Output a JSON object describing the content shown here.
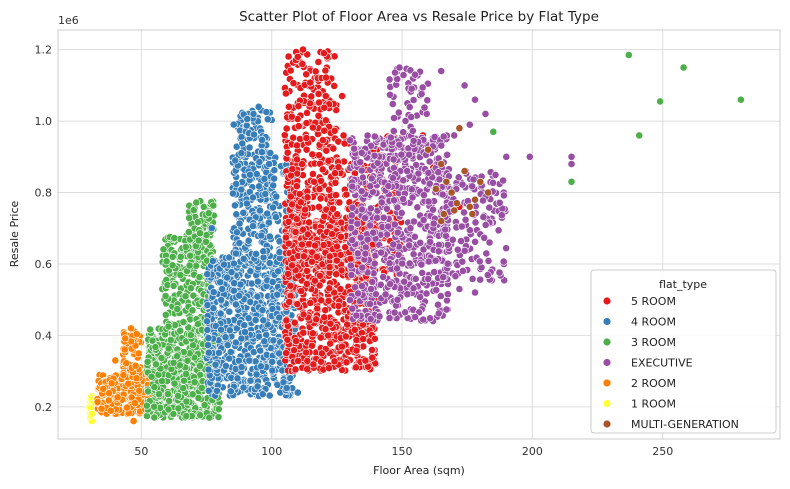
{
  "chart_data": {
    "type": "scatter",
    "title": "Scatter Plot of Floor Area vs Resale Price by Flat Type",
    "xlabel": "Floor Area (sqm)",
    "ylabel": "Resale Price",
    "y_offset_label": "1e6",
    "xlim": [
      18,
      295
    ],
    "ylim": [
      110000,
      1255000
    ],
    "x_ticks": [
      50,
      100,
      150,
      200,
      250
    ],
    "x_tick_labels": [
      "50",
      "100",
      "150",
      "200",
      "250"
    ],
    "y_ticks": [
      200000,
      400000,
      600000,
      800000,
      1000000,
      1200000
    ],
    "y_tick_labels": [
      "0.2",
      "0.4",
      "0.6",
      "0.8",
      "1.0",
      "1.2"
    ],
    "grid": true,
    "legend": {
      "title": "flat_type",
      "placement": "lower-right"
    },
    "series": [
      {
        "name": "5 ROOM",
        "color": "#e41a1c",
        "clusters": [
          {
            "x": [
              105,
              140
            ],
            "y": [
              300000,
              720000
            ],
            "count": 700
          },
          {
            "x": [
              105,
              125
            ],
            "y": [
              600000,
              1200000
            ],
            "count": 350
          },
          {
            "x": [
              118,
              150
            ],
            "y": [
              560000,
              960000
            ],
            "count": 250
          }
        ],
        "points": [
          [
            112,
            1200000
          ],
          [
            120,
            1190000
          ],
          [
            110,
            1180000
          ],
          [
            127,
            1070000
          ],
          [
            158,
            960000
          ],
          [
            162,
            870000
          ],
          [
            172,
            760000
          ],
          [
            135,
            430000
          ]
        ]
      },
      {
        "name": "4 ROOM",
        "color": "#377eb8",
        "clusters": [
          {
            "x": [
              75,
              108
            ],
            "y": [
              230000,
              620000
            ],
            "count": 700
          },
          {
            "x": [
              85,
              100
            ],
            "y": [
              600000,
              1030000
            ],
            "count": 260
          },
          {
            "x": [
              100,
              110
            ],
            "y": [
              300000,
              900000
            ],
            "count": 150
          }
        ],
        "points": [
          [
            95,
            1040000
          ],
          [
            93,
            1020000
          ],
          [
            99,
            880000
          ],
          [
            86,
            890000
          ],
          [
            77,
            700000
          ],
          [
            79,
            245000
          ],
          [
            110,
            240000
          ]
        ]
      },
      {
        "name": "3 ROOM",
        "color": "#4daf4a",
        "clusters": [
          {
            "x": [
              52,
              80
            ],
            "y": [
              170000,
              420000
            ],
            "count": 600
          },
          {
            "x": [
              58,
              76
            ],
            "y": [
              400000,
              680000
            ],
            "count": 250
          },
          {
            "x": [
              68,
              78
            ],
            "y": [
              600000,
              780000
            ],
            "count": 80
          }
        ],
        "points": [
          [
            237,
            1185000
          ],
          [
            258,
            1150000
          ],
          [
            249,
            1055000
          ],
          [
            280,
            1060000
          ],
          [
            241,
            960000
          ],
          [
            185,
            970000
          ],
          [
            215,
            830000
          ],
          [
            87,
            890000
          ],
          [
            101,
            880000
          ],
          [
            76,
            170000
          ],
          [
            138,
            510000
          ],
          [
            62,
            620000
          ]
        ]
      },
      {
        "name": "EXECUTIVE",
        "color": "#984ea3",
        "clusters": [
          {
            "x": [
              130,
              168
            ],
            "y": [
              440000,
              960000
            ],
            "count": 650
          },
          {
            "x": [
              160,
              190
            ],
            "y": [
              550000,
              860000
            ],
            "count": 180
          },
          {
            "x": [
              145,
              160
            ],
            "y": [
              900000,
              1150000
            ],
            "count": 70
          }
        ],
        "points": [
          [
            149,
            1150000
          ],
          [
            155,
            1130000
          ],
          [
            165,
            1140000
          ],
          [
            174,
            1100000
          ],
          [
            178,
            1060000
          ],
          [
            182,
            1020000
          ],
          [
            190,
            900000
          ],
          [
            199,
            900000
          ],
          [
            215,
            900000
          ],
          [
            215,
            880000
          ],
          [
            170,
            960000
          ],
          [
            176,
            990000
          ],
          [
            172,
            530000
          ],
          [
            178,
            520000
          ]
        ]
      },
      {
        "name": "2 ROOM",
        "color": "#ff7f00",
        "clusters": [
          {
            "x": [
              33,
              55
            ],
            "y": [
              180000,
              290000
            ],
            "count": 300
          },
          {
            "x": [
              43,
              50
            ],
            "y": [
              280000,
              420000
            ],
            "count": 60
          }
        ],
        "points": [
          [
            46,
            420000
          ],
          [
            47,
            160000
          ],
          [
            40,
            330000
          ],
          [
            58,
            180000
          ]
        ]
      },
      {
        "name": "1 ROOM",
        "color": "#ffff33",
        "clusters": [
          {
            "x": [
              30,
              31.5
            ],
            "y": [
              160000,
              230000
            ],
            "count": 40
          }
        ],
        "points": []
      },
      {
        "name": "MULTI-GENERATION",
        "color": "#a65628",
        "clusters": [],
        "points": [
          [
            160,
            920000
          ],
          [
            165,
            880000
          ],
          [
            169,
            800000
          ],
          [
            165,
            720000
          ],
          [
            167,
            830000
          ],
          [
            171,
            770000
          ],
          [
            172,
            980000
          ],
          [
            180,
            830000
          ],
          [
            176,
            760000
          ],
          [
            177,
            740000
          ],
          [
            183,
            800000
          ],
          [
            170,
            750000
          ],
          [
            163,
            810000
          ],
          [
            174,
            860000
          ],
          [
            178,
            780000
          ],
          [
            166,
            740000
          ]
        ]
      }
    ]
  }
}
